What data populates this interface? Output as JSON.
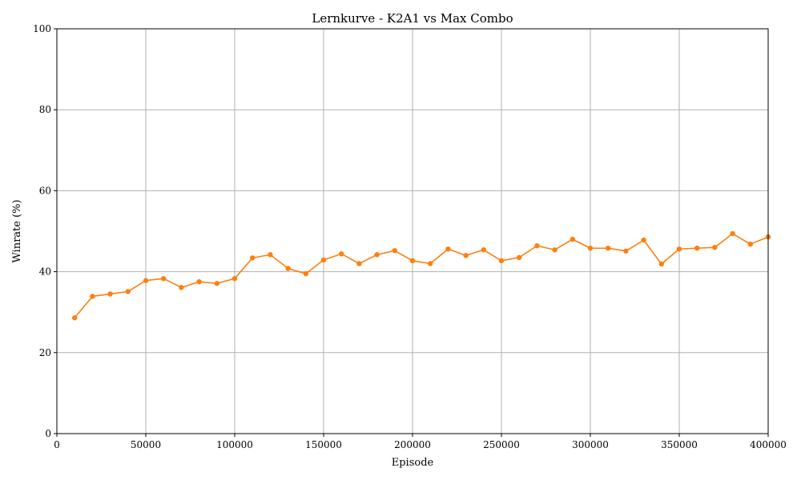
{
  "chart_data": {
    "type": "line",
    "title": "Lernkurve - K2A1 vs Max Combo",
    "xlabel": "Episode",
    "ylabel": "Winrate (%)",
    "xlim": [
      0,
      400000
    ],
    "ylim": [
      0,
      100
    ],
    "xticks": [
      0,
      50000,
      100000,
      150000,
      200000,
      250000,
      300000,
      350000,
      400000
    ],
    "yticks": [
      0,
      20,
      40,
      60,
      80,
      100
    ],
    "grid": true,
    "color": "#ff7f0e",
    "series": [
      {
        "x": [
          10000,
          20000,
          30000,
          40000,
          50000,
          60000,
          70000,
          80000,
          90000,
          100000,
          110000,
          120000,
          130000,
          140000,
          150000,
          160000,
          170000,
          180000,
          190000,
          200000,
          210000,
          220000,
          230000,
          240000,
          250000,
          260000,
          270000,
          280000,
          290000,
          300000,
          310000,
          320000,
          330000,
          340000,
          350000,
          360000,
          370000,
          380000,
          390000,
          400000
        ],
        "values": [
          28.6,
          33.9,
          34.5,
          35.1,
          37.8,
          38.3,
          36.1,
          37.5,
          37.1,
          38.3,
          43.4,
          44.2,
          40.8,
          39.5,
          42.9,
          44.4,
          42.0,
          44.2,
          45.2,
          42.7,
          42.0,
          45.6,
          44.0,
          45.4,
          42.7,
          43.5,
          46.4,
          45.4,
          48.0,
          45.8,
          45.8,
          45.1,
          47.8,
          41.9,
          45.6,
          45.8,
          46.0,
          49.4,
          46.8,
          48.6
        ]
      }
    ]
  }
}
